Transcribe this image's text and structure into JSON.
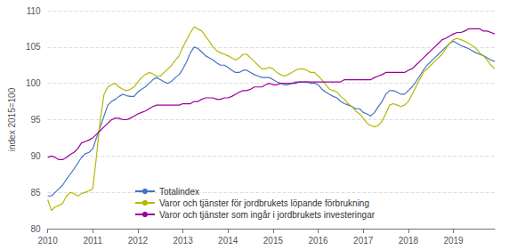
{
  "chart_data": {
    "type": "line",
    "ylabel": "index 2015=100",
    "xlim": [
      2010.0,
      2019.917
    ],
    "xticks": [
      2010,
      2011,
      2012,
      2013,
      2014,
      2015,
      2016,
      2017,
      2018,
      2019
    ],
    "ylim": [
      80,
      110
    ],
    "yticks": [
      80,
      85,
      90,
      95,
      100,
      105,
      110
    ],
    "grid": "y",
    "legend": "lower center",
    "x": [
      2010,
      2010.0833333333333,
      2010.1666666666667,
      2010.25,
      2010.3333333333333,
      2010.4166666666667,
      2010.5,
      2010.5833333333333,
      2010.6666666666667,
      2010.75,
      2010.8333333333333,
      2010.9166666666667,
      2011,
      2011.0833333333333,
      2011.1666666666667,
      2011.25,
      2011.3333333333333,
      2011.4166666666667,
      2011.5,
      2011.5833333333333,
      2011.6666666666667,
      2011.75,
      2011.8333333333333,
      2011.9166666666667,
      2012,
      2012.0833333333333,
      2012.1666666666667,
      2012.25,
      2012.3333333333333,
      2012.4166666666667,
      2012.5,
      2012.5833333333333,
      2012.6666666666667,
      2012.75,
      2012.8333333333333,
      2012.9166666666667,
      2013,
      2013.0833333333333,
      2013.1666666666667,
      2013.25,
      2013.3333333333333,
      2013.4166666666667,
      2013.5,
      2013.5833333333333,
      2013.6666666666667,
      2013.75,
      2013.8333333333333,
      2013.9166666666667,
      2014,
      2014.0833333333333,
      2014.1666666666667,
      2014.25,
      2014.3333333333333,
      2014.4166666666667,
      2014.5,
      2014.5833333333333,
      2014.6666666666667,
      2014.75,
      2014.8333333333333,
      2014.9166666666667,
      2015,
      2015.0833333333333,
      2015.1666666666667,
      2015.25,
      2015.3333333333333,
      2015.4166666666667,
      2015.5,
      2015.5833333333333,
      2015.6666666666667,
      2015.75,
      2015.8333333333333,
      2015.9166666666667,
      2016,
      2016.0833333333333,
      2016.1666666666667,
      2016.25,
      2016.3333333333333,
      2016.4166666666667,
      2016.5,
      2016.5833333333333,
      2016.6666666666667,
      2016.75,
      2016.8333333333333,
      2016.9166666666667,
      2017,
      2017.0833333333333,
      2017.1666666666667,
      2017.25,
      2017.3333333333333,
      2017.4166666666667,
      2017.5,
      2017.5833333333333,
      2017.6666666666667,
      2017.75,
      2017.8333333333333,
      2017.9166666666667,
      2018,
      2018.0833333333333,
      2018.1666666666667,
      2018.25,
      2018.3333333333333,
      2018.4166666666667,
      2018.5,
      2018.5833333333333,
      2018.6666666666667,
      2018.75,
      2018.8333333333333,
      2018.9166666666667,
      2019,
      2019.0833333333333,
      2019.1666666666667,
      2019.25,
      2019.3333333333333,
      2019.4166666666667,
      2019.5,
      2019.5833333333333,
      2019.6666666666667,
      2019.75,
      2019.8333333333333,
      2019.9166666666667
    ],
    "series": [
      {
        "name": "Totalindex",
        "color": "#4472c4",
        "values": [
          84.5,
          84.5,
          85.0,
          85.5,
          86.0,
          86.8,
          87.5,
          88.2,
          89.0,
          89.8,
          90.3,
          90.5,
          91.0,
          92.5,
          94.0,
          95.5,
          97.0,
          97.5,
          97.8,
          98.2,
          98.5,
          98.3,
          98.2,
          98.2,
          98.8,
          99.2,
          99.5,
          100.0,
          100.5,
          100.8,
          100.5,
          100.2,
          100.0,
          100.3,
          100.8,
          101.2,
          102.0,
          103.0,
          104.2,
          105.0,
          104.8,
          104.3,
          103.8,
          103.5,
          103.2,
          102.8,
          102.5,
          102.5,
          102.2,
          101.8,
          101.5,
          101.5,
          101.8,
          101.8,
          101.5,
          101.2,
          101.0,
          100.8,
          100.8,
          100.8,
          100.5,
          100.2,
          100.0,
          99.8,
          99.8,
          100.0,
          100.2,
          100.2,
          100.2,
          100.2,
          100.0,
          100.0,
          99.8,
          99.2,
          98.8,
          98.5,
          98.2,
          98.0,
          97.5,
          97.2,
          97.0,
          96.8,
          96.5,
          96.5,
          96.0,
          95.8,
          95.5,
          96.0,
          96.8,
          97.5,
          98.5,
          99.0,
          99.0,
          98.8,
          98.5,
          98.5,
          99.0,
          99.5,
          100.2,
          101.0,
          101.8,
          102.5,
          103.0,
          103.5,
          104.0,
          104.5,
          105.0,
          105.5,
          105.8,
          105.5,
          105.2,
          105.0,
          104.8,
          104.5,
          104.2,
          104.0,
          103.8,
          103.5,
          103.2,
          103.0
        ]
      },
      {
        "name": "Varor och tjänster för jordbrukets löpande förbrukning",
        "color": "#b5b800",
        "values": [
          84.0,
          82.5,
          83.0,
          83.2,
          83.5,
          84.5,
          85.0,
          84.8,
          84.5,
          84.8,
          85.0,
          85.2,
          85.5,
          90.0,
          95.0,
          98.5,
          99.5,
          99.8,
          100.0,
          99.5,
          99.2,
          99.0,
          99.2,
          99.5,
          100.2,
          100.8,
          101.2,
          101.5,
          101.3,
          101.0,
          101.0,
          101.5,
          102.0,
          102.5,
          103.2,
          103.8,
          105.0,
          106.0,
          107.0,
          107.8,
          107.5,
          107.2,
          106.5,
          105.8,
          105.0,
          104.5,
          104.2,
          104.0,
          103.8,
          103.5,
          103.2,
          103.5,
          104.0,
          104.0,
          103.5,
          103.0,
          102.5,
          102.0,
          102.0,
          102.2,
          102.0,
          101.5,
          101.2,
          101.0,
          101.2,
          101.5,
          101.8,
          102.0,
          102.0,
          101.8,
          101.5,
          101.5,
          101.0,
          100.5,
          99.8,
          99.2,
          99.0,
          98.8,
          98.2,
          97.8,
          97.2,
          96.8,
          96.2,
          95.8,
          95.2,
          94.5,
          94.2,
          94.0,
          94.2,
          94.8,
          95.8,
          97.0,
          97.2,
          97.0,
          96.8,
          97.0,
          97.5,
          98.5,
          99.5,
          100.5,
          101.5,
          102.0,
          102.5,
          103.0,
          103.5,
          104.0,
          104.8,
          105.5,
          106.0,
          106.2,
          106.0,
          105.8,
          105.5,
          105.2,
          104.8,
          104.2,
          103.8,
          103.2,
          102.5,
          102.0
        ]
      },
      {
        "name": "Varor och tjänster som ingår i jordbrukets investeringar",
        "color": "#9b009b",
        "values": [
          89.8,
          90.0,
          89.8,
          89.5,
          89.5,
          89.8,
          90.2,
          90.5,
          91.0,
          91.8,
          92.0,
          92.2,
          92.5,
          93.0,
          93.5,
          94.0,
          94.5,
          95.0,
          95.2,
          95.2,
          95.0,
          95.0,
          95.2,
          95.5,
          95.8,
          96.0,
          96.2,
          96.5,
          96.8,
          97.0,
          97.0,
          97.0,
          97.0,
          97.0,
          97.0,
          97.0,
          97.2,
          97.2,
          97.2,
          97.5,
          97.5,
          97.8,
          98.0,
          98.0,
          98.0,
          97.8,
          97.8,
          98.0,
          98.0,
          98.2,
          98.5,
          98.8,
          99.0,
          99.0,
          99.2,
          99.5,
          99.5,
          99.5,
          99.8,
          100.0,
          99.8,
          99.8,
          100.0,
          100.0,
          100.0,
          100.0,
          100.0,
          100.2,
          100.2,
          100.2,
          100.2,
          100.2,
          100.2,
          100.2,
          100.2,
          100.2,
          100.2,
          100.2,
          100.2,
          100.5,
          100.5,
          100.5,
          100.5,
          100.5,
          100.5,
          100.5,
          100.5,
          100.8,
          101.0,
          101.2,
          101.5,
          101.5,
          101.5,
          101.5,
          101.5,
          101.5,
          101.8,
          102.0,
          102.5,
          103.0,
          103.5,
          104.0,
          104.5,
          105.0,
          105.5,
          106.0,
          106.2,
          106.5,
          106.8,
          107.0,
          107.0,
          107.2,
          107.5,
          107.5,
          107.5,
          107.5,
          107.2,
          107.2,
          107.0,
          106.8
        ]
      }
    ]
  }
}
